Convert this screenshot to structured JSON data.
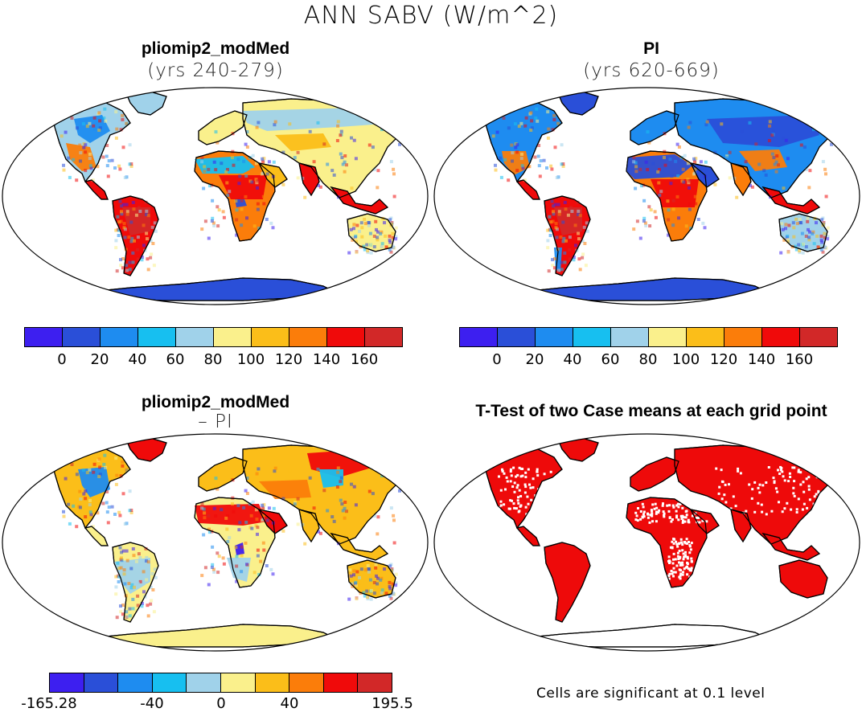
{
  "figure": {
    "title": "ANN SABV (W/m^2)"
  },
  "panels": {
    "top_left": {
      "title": "pliomip2_modMed",
      "subtitle": "(yrs 240-279)"
    },
    "top_right": {
      "title": "PI",
      "subtitle": "(yrs 620-669)"
    },
    "bottom_left": {
      "title": "pliomip2_modMed",
      "subtitle": "– PI"
    },
    "bottom_right": {
      "title": "T-Test of two Case means at each grid point",
      "note": "Cells are significant at 0.1 level"
    }
  },
  "colorbars": {
    "absolute": {
      "colors": [
        "#3d1ff0",
        "#2a4fd8",
        "#1e8cf0",
        "#17bff0",
        "#a0d2ea",
        "#faf08c",
        "#fbbe19",
        "#fb7d0a",
        "#f00a0a",
        "#d22828"
      ],
      "ticks": [
        "0",
        "20",
        "40",
        "60",
        "80",
        "100",
        "120",
        "140",
        "160"
      ]
    },
    "difference": {
      "colors": [
        "#3d1ff0",
        "#2a4fd8",
        "#1e8cf0",
        "#17bff0",
        "#a0d2ea",
        "#faf08c",
        "#fbbe19",
        "#fb7d0a",
        "#f00a0a",
        "#d22828"
      ],
      "ticks": [
        "-165.28",
        "-40",
        "0",
        "40",
        "195.5"
      ]
    }
  },
  "colors": {
    "ocean": "#ffffff",
    "outline": "#000000",
    "significant": "#ee0a0a"
  }
}
